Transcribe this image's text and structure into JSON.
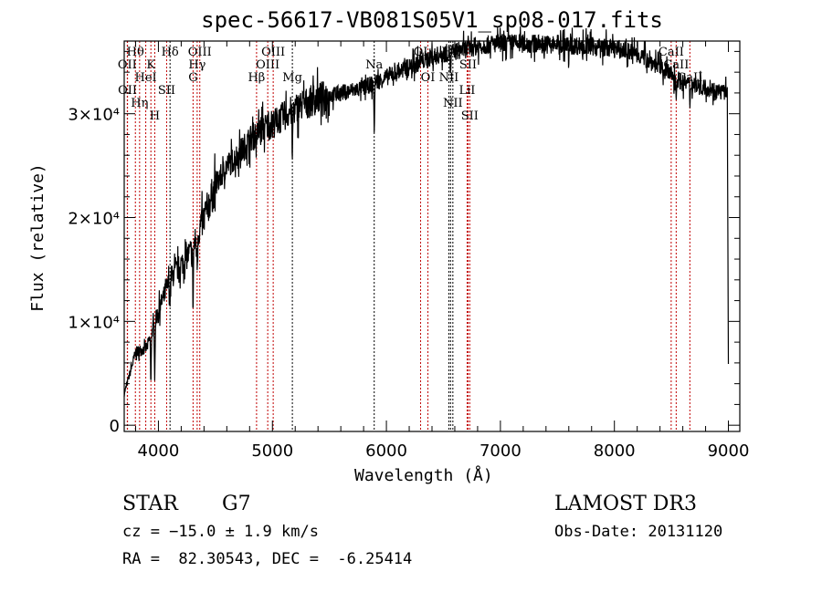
{
  "chart_data": {
    "type": "line",
    "title": "spec-56617-VB081S05V1_sp08-017.fits",
    "xlabel": "Wavelength (Å)",
    "ylabel": "Flux (relative)",
    "xlim": [
      3700,
      9100
    ],
    "ylim": [
      -600,
      37000
    ],
    "xticks": [
      4000,
      5000,
      6000,
      7000,
      8000,
      9000
    ],
    "xtick_labels": [
      "4000",
      "5000",
      "6000",
      "7000",
      "8000",
      "9000"
    ],
    "yticks": [
      0,
      10000,
      20000,
      30000
    ],
    "ytick_labels": [
      "0",
      "1×10⁴",
      "2×10⁴",
      "3×10⁴"
    ],
    "continuum": [
      [
        3700,
        3000
      ],
      [
        3800,
        7000
      ],
      [
        3900,
        7500
      ],
      [
        4000,
        11000
      ],
      [
        4100,
        14000
      ],
      [
        4200,
        15500
      ],
      [
        4300,
        17000
      ],
      [
        4400,
        20000
      ],
      [
        4500,
        23000
      ],
      [
        4600,
        25000
      ],
      [
        4700,
        26000
      ],
      [
        4800,
        27500
      ],
      [
        4900,
        28500
      ],
      [
        5000,
        29000
      ],
      [
        5200,
        30500
      ],
      [
        5400,
        31500
      ],
      [
        5600,
        32000
      ],
      [
        5800,
        32500
      ],
      [
        6000,
        33500
      ],
      [
        6200,
        34500
      ],
      [
        6400,
        35500
      ],
      [
        6600,
        36000
      ],
      [
        6800,
        36500
      ],
      [
        7000,
        36800
      ],
      [
        7400,
        36700
      ],
      [
        7800,
        36500
      ],
      [
        8000,
        36300
      ],
      [
        8200,
        35800
      ],
      [
        8400,
        34500
      ],
      [
        8600,
        33000
      ],
      [
        8800,
        32500
      ],
      [
        8990,
        32000
      ],
      [
        9000,
        6000
      ]
    ],
    "absorption": [
      [
        3934,
        5000
      ],
      [
        3968,
        5000
      ],
      [
        4102,
        2000
      ],
      [
        4304,
        6000
      ],
      [
        4340,
        3000
      ],
      [
        4861,
        2500
      ],
      [
        5175,
        5000
      ],
      [
        5893,
        5000
      ],
      [
        6563,
        2500
      ],
      [
        7600,
        2000
      ],
      [
        8542,
        2000
      ],
      [
        8662,
        2000
      ]
    ],
    "lines": [
      {
        "label": "Hθ",
        "wave": 3798,
        "row": 1,
        "color": "#c00000"
      },
      {
        "label": "K",
        "wave": 3934,
        "row": 1,
        "color": "#c00000"
      },
      {
        "label": "Hδ",
        "wave": 4102,
        "row": 1,
        "color": "#000000"
      },
      {
        "label": "OIII",
        "wave": 4363,
        "row": 1,
        "color": "#c00000"
      },
      {
        "label": "OIII",
        "wave": 5007,
        "row": 1,
        "color": "#c00000"
      },
      {
        "label": "OI",
        "wave": 6300,
        "row": 1,
        "color": "#c00000"
      },
      {
        "label": "Hα",
        "wave": 6563,
        "row": 1,
        "color": "#000000"
      },
      {
        "label": "SII",
        "wave": 6716,
        "row": 1,
        "color": "#c00000"
      },
      {
        "label": "CaII",
        "wave": 8498,
        "row": 1,
        "color": "#c00000"
      },
      {
        "label": "OII",
        "wave": 3727,
        "row": 2,
        "color": "#c00000"
      },
      {
        "label": "HeI",
        "wave": 3889,
        "row": 2,
        "color": "#c00000"
      },
      {
        "label": "SII",
        "wave": 4072,
        "row": 2,
        "color": "#c00000"
      },
      {
        "label": "Hγ",
        "wave": 4340,
        "row": 2,
        "color": "#c00000"
      },
      {
        "label": "OIII",
        "wave": 4959,
        "row": 2,
        "color": "#c00000"
      },
      {
        "label": "NII",
        "wave": 6548,
        "row": 2,
        "color": "#000000"
      },
      {
        "label": "LiI",
        "wave": 6708,
        "row": 2,
        "color": "#c00000"
      },
      {
        "label": "CaII",
        "wave": 8542,
        "row": 2,
        "color": "#c00000"
      },
      {
        "label": "OII",
        "wave": 3729,
        "row": 3,
        "color": "#c00000"
      },
      {
        "label": "Hη",
        "wave": 3835,
        "row": 3,
        "color": "#c00000"
      },
      {
        "label": "H",
        "wave": 3968,
        "row": 3,
        "color": "#c00000"
      },
      {
        "label": "G",
        "wave": 4304,
        "row": 3,
        "color": "#c00000"
      },
      {
        "label": "Hβ",
        "wave": 4861,
        "row": 3,
        "color": "#c00000"
      },
      {
        "label": "Mg",
        "wave": 5175,
        "row": 3,
        "color": "#000000"
      },
      {
        "label": "Na",
        "wave": 5893,
        "row": 2,
        "color": "#000000"
      },
      {
        "label": "OI",
        "wave": 6364,
        "row": 3,
        "color": "#c00000"
      },
      {
        "label": "NII",
        "wave": 6583,
        "row": 3,
        "color": "#000000"
      },
      {
        "label": "SII",
        "wave": 6731,
        "row": 3,
        "color": "#c00000"
      },
      {
        "label": "CaII",
        "wave": 8662,
        "row": 3,
        "color": "#c00000"
      }
    ]
  },
  "info": {
    "object_class": "STAR",
    "subclass": "G7",
    "survey": "LAMOST DR3",
    "redshift": "cz = −15.0 ± 1.9 km/s",
    "obs_date": "Obs-Date: 20131120",
    "coords": "RA =  82.30543, DEC =  -6.25414"
  }
}
